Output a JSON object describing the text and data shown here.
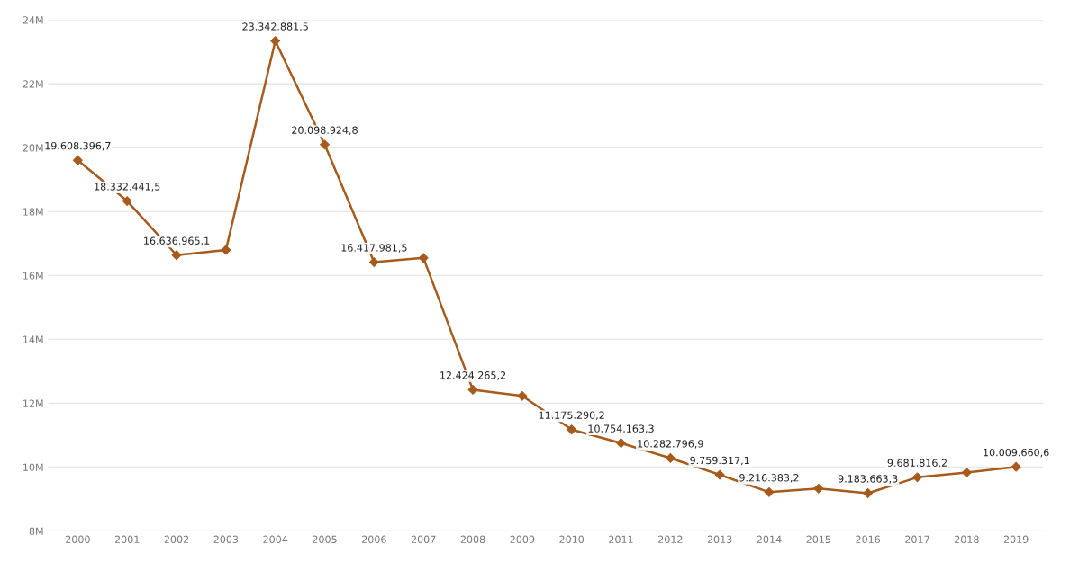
{
  "chart_data": {
    "type": "line",
    "categories": [
      "2000",
      "2001",
      "2002",
      "2003",
      "2004",
      "2005",
      "2006",
      "2007",
      "2008",
      "2009",
      "2010",
      "2011",
      "2012",
      "2013",
      "2014",
      "2015",
      "2016",
      "2017",
      "2018",
      "2019"
    ],
    "series": [
      {
        "color": "#a65a1c",
        "values": [
          19608396.7,
          18332441.5,
          16636965.1,
          16800000,
          23342881.5,
          20098924.8,
          16417981.5,
          16550000,
          12424265.2,
          12230000,
          11175290.2,
          10754163.3,
          10282796.9,
          9759317.1,
          9216383.2,
          9330000,
          9183663.3,
          9681816.2,
          9830000,
          10009660.6
        ],
        "value_labels": [
          "19.608.396,7",
          "18.332.441,5",
          "16.636.965,1",
          null,
          "23.342.881,5",
          "20.098.924,8",
          "16.417.981,5",
          null,
          "12.424.265,2",
          null,
          "11.175.290,2",
          "10.754.163,3",
          "10.282.796,9",
          "9.759.317,1",
          "9.216.383,2",
          null,
          "9.183.663,3",
          "9.681.816,2",
          null,
          "10.009.660,6"
        ]
      }
    ],
    "ylim": [
      8000000,
      24000000
    ],
    "yticks": [
      {
        "value": 8000000,
        "label": "8M"
      },
      {
        "value": 10000000,
        "label": "10M"
      },
      {
        "value": 12000000,
        "label": "12M"
      },
      {
        "value": 14000000,
        "label": "14M"
      },
      {
        "value": 16000000,
        "label": "16M"
      },
      {
        "value": 18000000,
        "label": "18M"
      },
      {
        "value": 20000000,
        "label": "20M"
      },
      {
        "value": 22000000,
        "label": "22M"
      },
      {
        "value": 24000000,
        "label": "24M"
      }
    ],
    "grid": "y",
    "marker": "diamond",
    "line_style": "solid",
    "legend": false
  }
}
